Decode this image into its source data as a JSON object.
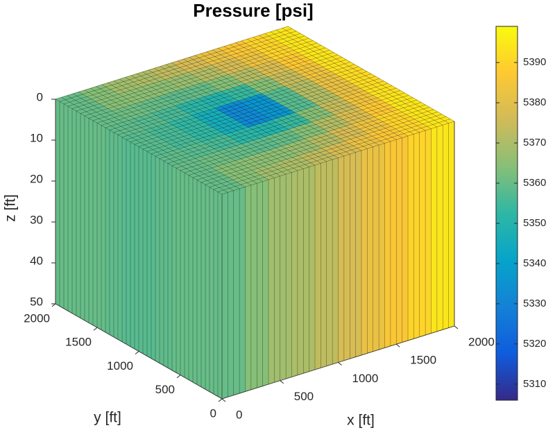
{
  "chart_data": {
    "type": "box3d",
    "title": "Pressure [psi]",
    "xlabel": "x [ft]",
    "ylabel": "y [ft]",
    "zlabel": "z [ft]",
    "xlim": [
      0,
      2000
    ],
    "ylim": [
      0,
      2000
    ],
    "zlim": [
      0,
      50
    ],
    "z_reversed": true,
    "xticks": [
      0,
      500,
      1000,
      1500,
      2000
    ],
    "yticks": [
      0,
      500,
      1000,
      1500,
      2000
    ],
    "zticks": [
      0,
      10,
      20,
      30,
      40,
      50
    ],
    "clim": [
      5306,
      5399
    ],
    "cticks": [
      5310,
      5320,
      5330,
      5340,
      5350,
      5360,
      5370,
      5380,
      5390
    ],
    "colormap": [
      "#352a87",
      "#0f5cdd",
      "#1481d6",
      "#06a4ca",
      "#2eb7a4",
      "#87bf77",
      "#d1bb59",
      "#fec832",
      "#f9fb0e"
    ],
    "values": [
      [
        5360,
        5364,
        5368,
        5370,
        5373,
        5377,
        5382,
        5386,
        5390,
        5394
      ],
      [
        5360,
        5364,
        5365,
        5365,
        5367,
        5371,
        5377,
        5383,
        5390,
        5394
      ],
      [
        5360,
        5361,
        5360,
        5359,
        5360,
        5364,
        5371,
        5378,
        5387,
        5394
      ],
      [
        5359,
        5358,
        5356,
        5352,
        5350,
        5354,
        5364,
        5374,
        5384,
        5393
      ],
      [
        5358,
        5356,
        5353,
        5346,
        5332,
        5336,
        5358,
        5371,
        5382,
        5392
      ],
      [
        5358,
        5356,
        5353,
        5346,
        5332,
        5336,
        5358,
        5371,
        5382,
        5392
      ],
      [
        5359,
        5358,
        5356,
        5352,
        5350,
        5354,
        5364,
        5374,
        5384,
        5393
      ],
      [
        5360,
        5361,
        5360,
        5359,
        5360,
        5364,
        5371,
        5378,
        5387,
        5394
      ],
      [
        5360,
        5364,
        5365,
        5365,
        5367,
        5371,
        5377,
        5383,
        5390,
        5394
      ],
      [
        5360,
        5364,
        5368,
        5370,
        5373,
        5377,
        5382,
        5386,
        5390,
        5394
      ]
    ]
  }
}
